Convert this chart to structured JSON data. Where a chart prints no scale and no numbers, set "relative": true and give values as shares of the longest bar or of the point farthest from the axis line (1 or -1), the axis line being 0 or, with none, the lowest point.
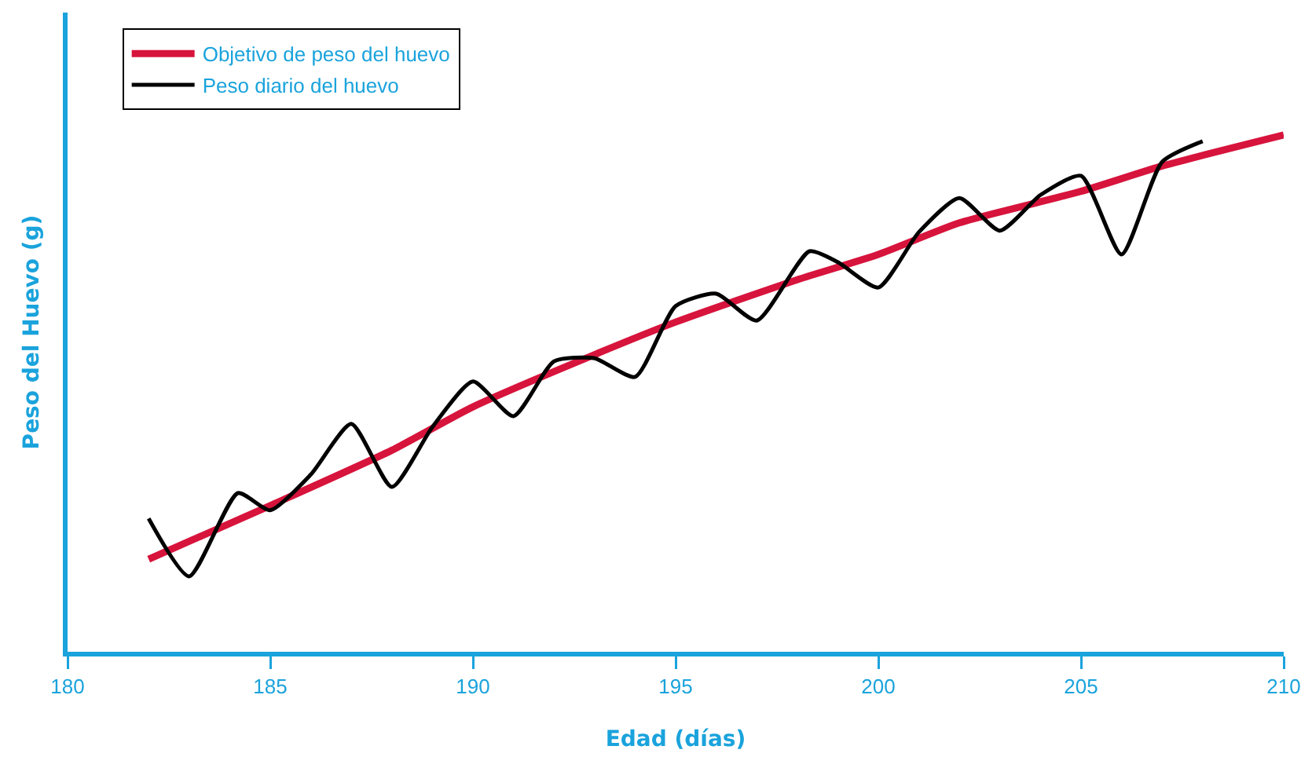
{
  "chart_data": {
    "type": "line",
    "xlabel": "Edad (días)",
    "ylabel": "Peso del Huevo (g)",
    "relative": true,
    "xlim": [
      180,
      210
    ],
    "xticks": [
      180,
      185,
      190,
      195,
      200,
      205,
      210
    ],
    "legend": "top left",
    "tick_labels": "x",
    "marker": "none",
    "line_style": "solid",
    "series": [
      {
        "name": "Objetivo de peso del huevo",
        "color": "#d7143c",
        "x": [
          182,
          185,
          188,
          190,
          193,
          195,
          198,
          200,
          202,
          205,
          207,
          210
        ],
        "values": [
          0.179,
          0.283,
          0.39,
          0.474,
          0.575,
          0.638,
          0.72,
          0.769,
          0.83,
          0.891,
          0.94,
          1.0
        ]
      },
      {
        "name": "Peso diario del huevo",
        "color": "#000000",
        "x": [
          182,
          183,
          184.2,
          185,
          186,
          187,
          188,
          189,
          190,
          191,
          192,
          193,
          194,
          195,
          196,
          197,
          198.3,
          199,
          200,
          201,
          202,
          203,
          204,
          205,
          206,
          207,
          208
        ],
        "values": [
          0.258,
          0.146,
          0.307,
          0.274,
          0.343,
          0.441,
          0.319,
          0.435,
          0.523,
          0.456,
          0.562,
          0.568,
          0.532,
          0.669,
          0.693,
          0.641,
          0.775,
          0.754,
          0.705,
          0.812,
          0.878,
          0.815,
          0.884,
          0.921,
          0.769,
          0.948,
          0.988
        ]
      }
    ]
  }
}
